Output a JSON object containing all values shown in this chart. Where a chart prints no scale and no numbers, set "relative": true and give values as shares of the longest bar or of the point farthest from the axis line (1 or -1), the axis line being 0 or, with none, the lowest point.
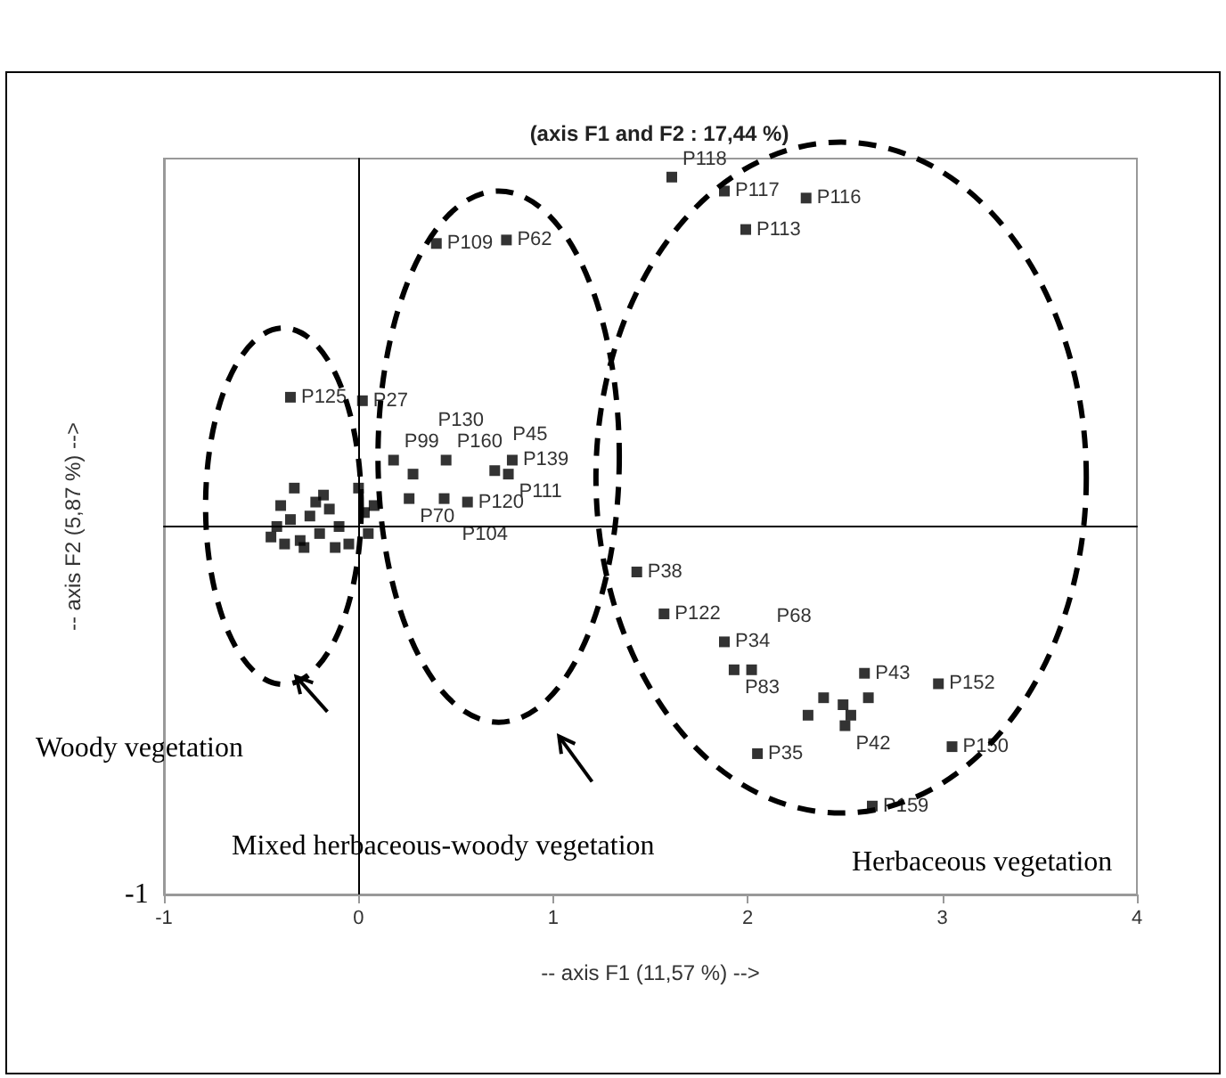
{
  "chart_data": {
    "type": "scatter",
    "title": "(axis F1 and F2 : 17,44 %)",
    "xlabel": "-- axis F1 (11,57 %) -->",
    "ylabel": "-- axis F2 (5,87 %) -->",
    "xlim": [
      -1,
      4
    ],
    "xticks": [
      -1,
      0,
      1,
      2,
      3,
      4
    ],
    "relative": true,
    "marker": "square",
    "series": [
      {
        "color": "#000000",
        "x": [
          1.61,
          1.88,
          2.3,
          1.99,
          0.4,
          0.76,
          -0.35,
          0.02,
          0.18,
          0.45,
          0.28,
          0.7,
          0.79,
          0.77,
          0.44,
          0.56,
          0.26,
          1.43,
          1.57,
          1.88,
          1.93,
          2.02,
          2.39,
          2.49,
          2.62,
          2.5,
          2.53,
          2.31,
          2.98,
          3.05,
          2.6,
          2.05,
          2.64,
          -0.45,
          -0.42,
          -0.38,
          -0.35,
          -0.3,
          -0.25,
          -0.2,
          -0.15,
          -0.1,
          -0.05,
          0.03,
          0.05,
          -0.33,
          -0.18,
          -0.4,
          -0.28,
          -0.12,
          0.08,
          0.0,
          -0.22
        ],
        "values": [
          1,
          0.96,
          0.94,
          0.85,
          0.81,
          0.82,
          0.37,
          0.36,
          0.19,
          0.19,
          0.15,
          0.16,
          0.19,
          0.15,
          0.08,
          0.07,
          0.08,
          -0.13,
          -0.25,
          -0.33,
          -0.41,
          -0.41,
          -0.49,
          -0.51,
          -0.49,
          -0.57,
          -0.54,
          -0.54,
          -0.45,
          -0.63,
          -0.42,
          -0.65,
          -0.8,
          -0.03,
          0.0,
          -0.05,
          0.02,
          -0.04,
          0.03,
          -0.02,
          0.05,
          0.0,
          -0.05,
          0.04,
          -0.02,
          0.11,
          0.09,
          0.06,
          -0.06,
          -0.06,
          0.06,
          0.11,
          0.07
        ]
      }
    ],
    "annotations": [
      {
        "text": "P118",
        "x": 1.61,
        "y": 1
      },
      {
        "text": "P117",
        "x": 1.88,
        "y": 0.96
      },
      {
        "text": "P116",
        "x": 2.3,
        "y": 0.94
      },
      {
        "text": "P113",
        "x": 1.99,
        "y": 0.85
      },
      {
        "text": "P109",
        "x": 0.4,
        "y": 0.81
      },
      {
        "text": "P62",
        "x": 0.76,
        "y": 0.82
      },
      {
        "text": "P125",
        "x": -0.35,
        "y": 0.37
      },
      {
        "text": "P27",
        "x": 0.02,
        "y": 0.36
      },
      {
        "text": "P99",
        "x": 0.18,
        "y": 0.19
      },
      {
        "text": "P160",
        "x": 0.45,
        "y": 0.19
      },
      {
        "text": "P130",
        "x": 0.28,
        "y": 0.15
      },
      {
        "text": "P45",
        "x": 0.7,
        "y": 0.16
      },
      {
        "text": "P139",
        "x": 0.79,
        "y": 0.19
      },
      {
        "text": "P111",
        "x": 0.77,
        "y": 0.15
      },
      {
        "text": "P104",
        "x": 0.44,
        "y": 0.08
      },
      {
        "text": "P120",
        "x": 0.56,
        "y": 0.07
      },
      {
        "text": "P70",
        "x": 0.26,
        "y": 0.08
      },
      {
        "text": "P38",
        "x": 1.43,
        "y": -0.13
      },
      {
        "text": "P122",
        "x": 1.57,
        "y": -0.25
      },
      {
        "text": "P34",
        "x": 1.88,
        "y": -0.33
      },
      {
        "text": "P83",
        "x": 1.93,
        "y": -0.41
      },
      {
        "text": "P68",
        "x": 2.02,
        "y": -0.41
      },
      {
        "text": "P43",
        "x": 2.6,
        "y": -0.42
      },
      {
        "text": "P152",
        "x": 2.98,
        "y": -0.45
      },
      {
        "text": "P42",
        "x": 2.5,
        "y": -0.57
      },
      {
        "text": "P150",
        "x": 3.05,
        "y": -0.63
      },
      {
        "text": "P35",
        "x": 2.05,
        "y": -0.65
      },
      {
        "text": "P159",
        "x": 2.64,
        "y": -0.8
      },
      "Woody vegetation",
      "Mixed herbaceous-woody vegetation",
      "Herbaceous vegetation",
      "-1"
    ]
  }
}
